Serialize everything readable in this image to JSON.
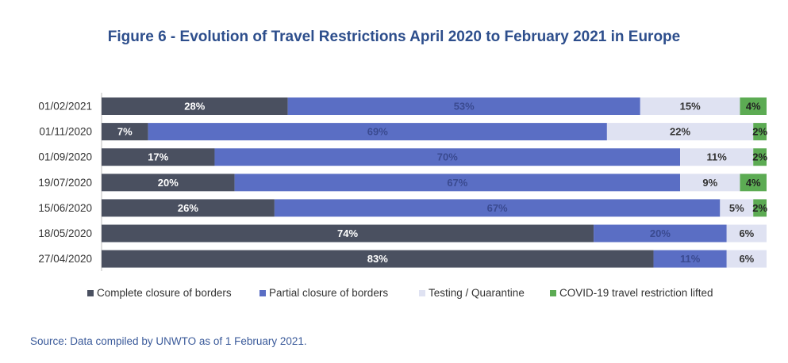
{
  "title": "Figure 6 - Evolution of Travel Restrictions April 2020 to February 2021 in Europe",
  "source": "Source: Data compiled by UNWTO as of 1 February 2021.",
  "chart_data": {
    "type": "bar",
    "orientation": "horizontal",
    "stacked": "100%",
    "categories": [
      "01/02/2021",
      "01/11/2020",
      "01/09/2020",
      "19/07/2020",
      "15/06/2020",
      "18/05/2020",
      "27/04/2020"
    ],
    "series": [
      {
        "name": "Complete closure of borders",
        "color": "#4a5060",
        "label_color": "#ffffff",
        "values": [
          28,
          7,
          17,
          20,
          26,
          74,
          83
        ]
      },
      {
        "name": "Partial closure of borders",
        "color": "#5a6ec4",
        "label_color": "#3a4a90",
        "values": [
          53,
          69,
          70,
          67,
          67,
          20,
          11
        ]
      },
      {
        "name": "Testing / Quarantine",
        "color": "#dfe2f2",
        "label_color": "#333333",
        "values": [
          15,
          22,
          11,
          9,
          5,
          6,
          6
        ]
      },
      {
        "name": "COVID-19 travel restriction lifted",
        "color": "#5cab53",
        "label_color": "#222222",
        "values": [
          4,
          2,
          2,
          4,
          2,
          null,
          null
        ]
      }
    ],
    "value_suffix": "%",
    "legend_position": "bottom",
    "grid": false
  }
}
